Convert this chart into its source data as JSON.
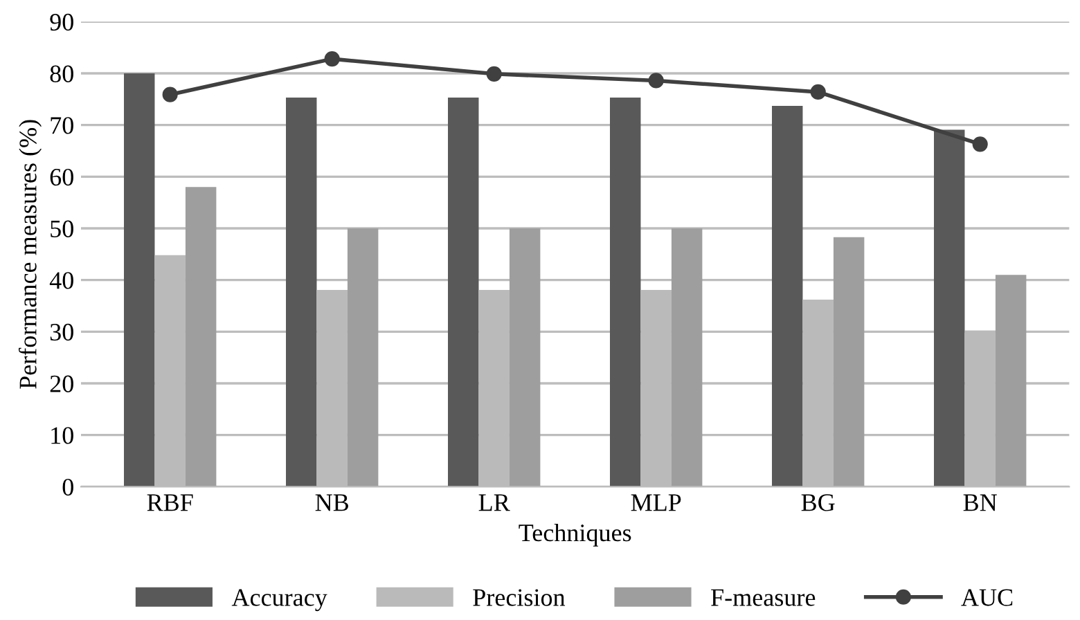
{
  "chart_data": {
    "type": "bar",
    "xlabel": "Techniques",
    "ylabel": "Performance measures (%)",
    "categories": [
      "RBF",
      "NB",
      "LR",
      "MLP",
      "BG",
      "BN"
    ],
    "series": [
      {
        "name": "Accuracy",
        "color": "#595959",
        "values": [
          80,
          75.3,
          75.3,
          75.3,
          73.7,
          69.1
        ]
      },
      {
        "name": "Precision",
        "color": "#bababa",
        "values": [
          44.8,
          38.1,
          38.1,
          38.1,
          36.2,
          30.2
        ]
      },
      {
        "name": "F-measure",
        "color": "#9e9e9e",
        "values": [
          58,
          50,
          50,
          50,
          48.3,
          41
        ]
      },
      {
        "name": "AUC",
        "type": "line",
        "color": "#404040",
        "values": [
          75.9,
          82.8,
          79.9,
          78.6,
          76.4,
          66.3
        ]
      }
    ],
    "ylim": [
      0,
      90
    ],
    "yticks": [
      0,
      10,
      20,
      30,
      40,
      50,
      60,
      70,
      80,
      90
    ],
    "grid": "y",
    "legend": "bottom",
    "marker": "circle",
    "line_style": "solid"
  }
}
